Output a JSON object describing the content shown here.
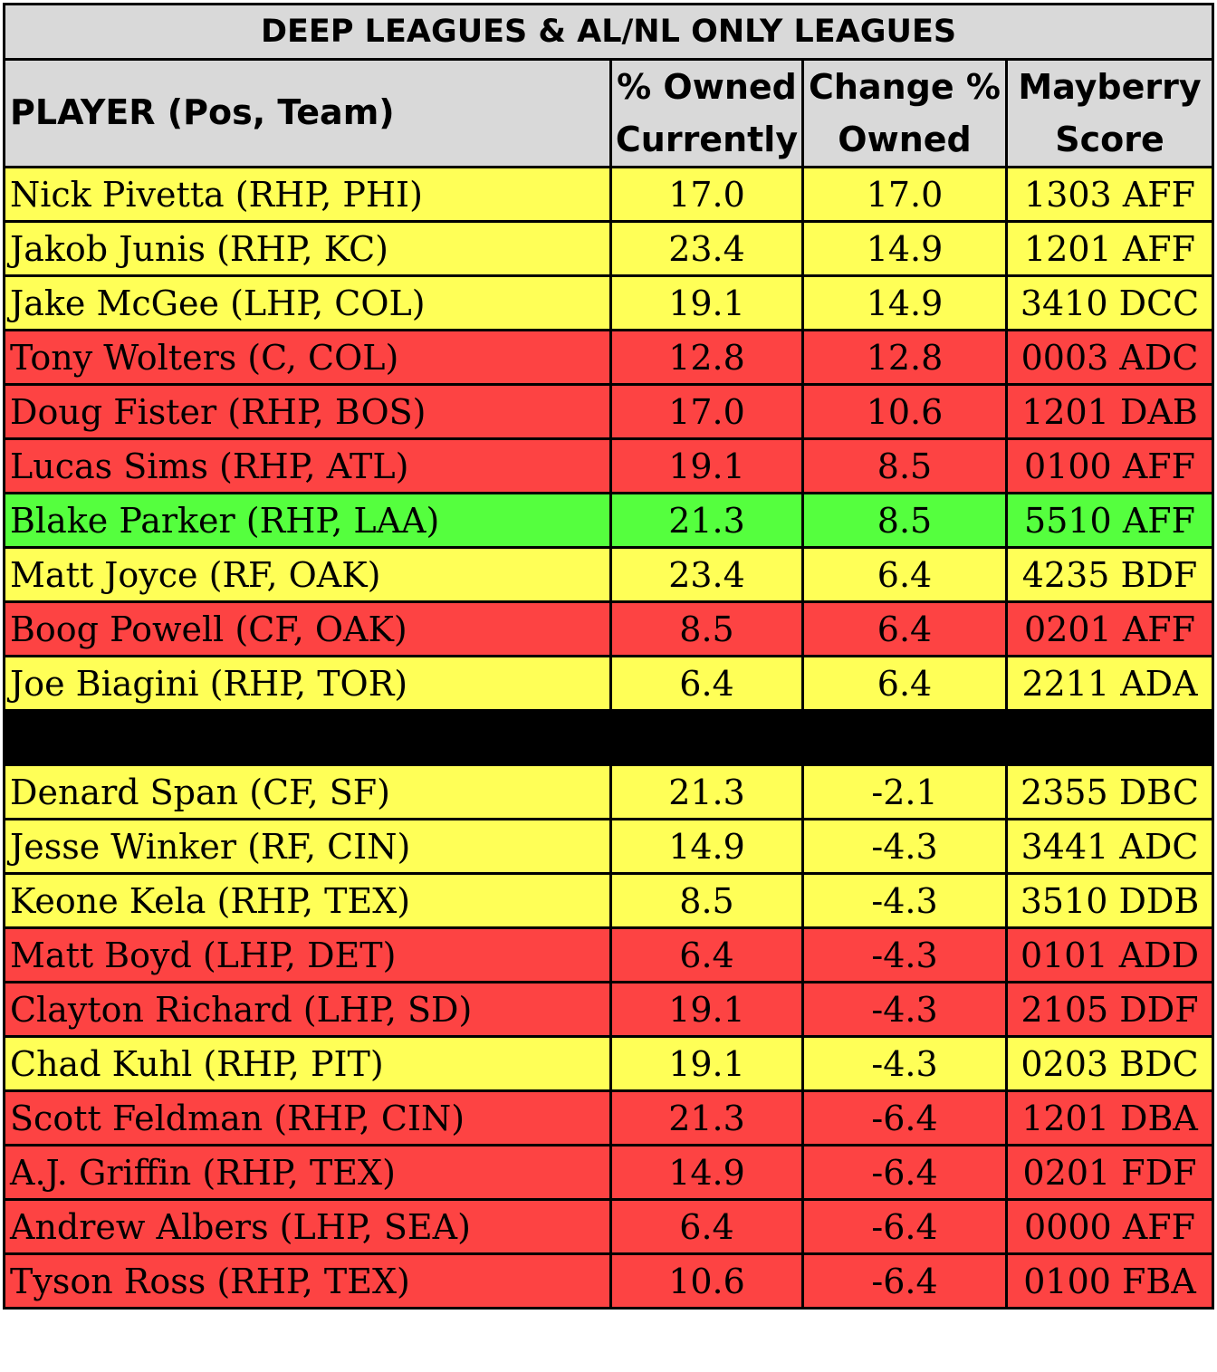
{
  "table": {
    "title": "DEEP LEAGUES & AL/NL ONLY LEAGUES",
    "headers": {
      "player": "PLAYER (Pos, Team)",
      "owned_line1": "% Owned",
      "owned_line2": "Currently",
      "change_line1": "Change %",
      "change_line2": "Owned",
      "mayberry_line1": "Mayberry",
      "mayberry_line2": "Score"
    },
    "colors": {
      "yellow": "#ffff57",
      "red": "#fd4343",
      "green": "#55ff3e",
      "header": "#d9d9d9",
      "separator": "#000000"
    },
    "risers": [
      {
        "player": "Nick Pivetta (RHP, PHI)",
        "owned": "17.0",
        "change": "17.0",
        "score": "1303 AFF",
        "color": "yellow"
      },
      {
        "player": "Jakob Junis (RHP, KC)",
        "owned": "23.4",
        "change": "14.9",
        "score": "1201 AFF",
        "color": "yellow"
      },
      {
        "player": "Jake McGee (LHP, COL)",
        "owned": "19.1",
        "change": "14.9",
        "score": "3410 DCC",
        "color": "yellow"
      },
      {
        "player": "Tony Wolters (C, COL)",
        "owned": "12.8",
        "change": "12.8",
        "score": "0003 ADC",
        "color": "red"
      },
      {
        "player": "Doug Fister (RHP, BOS)",
        "owned": "17.0",
        "change": "10.6",
        "score": "1201 DAB",
        "color": "red"
      },
      {
        "player": "Lucas Sims (RHP, ATL)",
        "owned": "19.1",
        "change": "8.5",
        "score": "0100 AFF",
        "color": "red"
      },
      {
        "player": "Blake Parker (RHP, LAA)",
        "owned": "21.3",
        "change": "8.5",
        "score": "5510 AFF",
        "color": "green"
      },
      {
        "player": "Matt Joyce (RF, OAK)",
        "owned": "23.4",
        "change": "6.4",
        "score": "4235 BDF",
        "color": "yellow"
      },
      {
        "player": "Boog Powell (CF, OAK)",
        "owned": "8.5",
        "change": "6.4",
        "score": "0201 AFF",
        "color": "red"
      },
      {
        "player": "Joe Biagini (RHP, TOR)",
        "owned": "6.4",
        "change": "6.4",
        "score": "2211 ADA",
        "color": "yellow"
      }
    ],
    "fallers": [
      {
        "player": "Denard Span (CF, SF)",
        "owned": "21.3",
        "change": "-2.1",
        "score": "2355 DBC",
        "color": "yellow"
      },
      {
        "player": "Jesse Winker (RF, CIN)",
        "owned": "14.9",
        "change": "-4.3",
        "score": "3441 ADC",
        "color": "yellow"
      },
      {
        "player": "Keone Kela (RHP, TEX)",
        "owned": "8.5",
        "change": "-4.3",
        "score": "3510 DDB",
        "color": "yellow"
      },
      {
        "player": "Matt Boyd (LHP, DET)",
        "owned": "6.4",
        "change": "-4.3",
        "score": "0101 ADD",
        "color": "red"
      },
      {
        "player": "Clayton Richard (LHP, SD)",
        "owned": "19.1",
        "change": "-4.3",
        "score": "2105 DDF",
        "color": "red"
      },
      {
        "player": "Chad Kuhl (RHP, PIT)",
        "owned": "19.1",
        "change": "-4.3",
        "score": "0203 BDC",
        "color": "yellow"
      },
      {
        "player": "Scott Feldman (RHP, CIN)",
        "owned": "21.3",
        "change": "-6.4",
        "score": "1201 DBA",
        "color": "red"
      },
      {
        "player": "A.J. Griffin (RHP, TEX)",
        "owned": "14.9",
        "change": "-6.4",
        "score": "0201 FDF",
        "color": "red"
      },
      {
        "player": "Andrew Albers (LHP, SEA)",
        "owned": "6.4",
        "change": "-6.4",
        "score": "0000 AFF",
        "color": "red"
      },
      {
        "player": "Tyson Ross (RHP, TEX)",
        "owned": "10.6",
        "change": "-6.4",
        "score": "0100 FBA",
        "color": "red"
      }
    ]
  }
}
